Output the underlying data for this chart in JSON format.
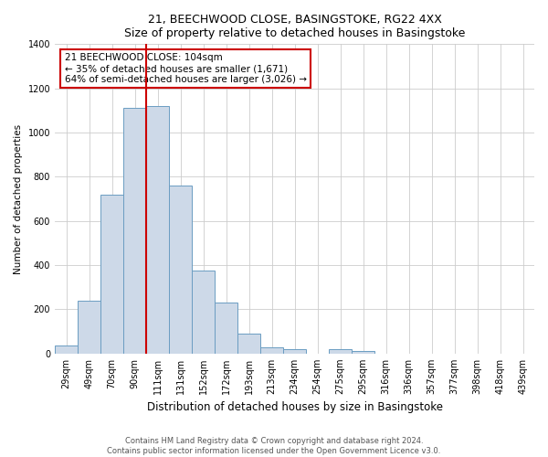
{
  "title": "21, BEECHWOOD CLOSE, BASINGSTOKE, RG22 4XX",
  "subtitle": "Size of property relative to detached houses in Basingstoke",
  "xlabel": "Distribution of detached houses by size in Basingstoke",
  "ylabel": "Number of detached properties",
  "bar_labels": [
    "29sqm",
    "49sqm",
    "70sqm",
    "90sqm",
    "111sqm",
    "131sqm",
    "152sqm",
    "172sqm",
    "193sqm",
    "213sqm",
    "234sqm",
    "254sqm",
    "275sqm",
    "295sqm",
    "316sqm",
    "336sqm",
    "357sqm",
    "377sqm",
    "398sqm",
    "418sqm",
    "439sqm"
  ],
  "bar_values": [
    35,
    240,
    720,
    1110,
    1120,
    760,
    375,
    230,
    90,
    30,
    20,
    0,
    20,
    10,
    0,
    0,
    0,
    0,
    0,
    0,
    0
  ],
  "bar_color": "#cdd9e8",
  "bar_edge_color": "#6b9dc2",
  "annotation_box_title": "21 BEECHWOOD CLOSE: 104sqm",
  "annotation_line1": "← 35% of detached houses are smaller (1,671)",
  "annotation_line2": "64% of semi-detached houses are larger (3,026) →",
  "annotation_box_color": "#ffffff",
  "annotation_box_edge_color": "#cc0000",
  "vline_color": "#cc0000",
  "vline_x": 3.5,
  "ylim": [
    0,
    1400
  ],
  "yticks": [
    0,
    200,
    400,
    600,
    800,
    1000,
    1200,
    1400
  ],
  "footer_line1": "Contains HM Land Registry data © Crown copyright and database right 2024.",
  "footer_line2": "Contains public sector information licensed under the Open Government Licence v3.0.",
  "background_color": "#ffffff",
  "grid_color": "#cccccc"
}
